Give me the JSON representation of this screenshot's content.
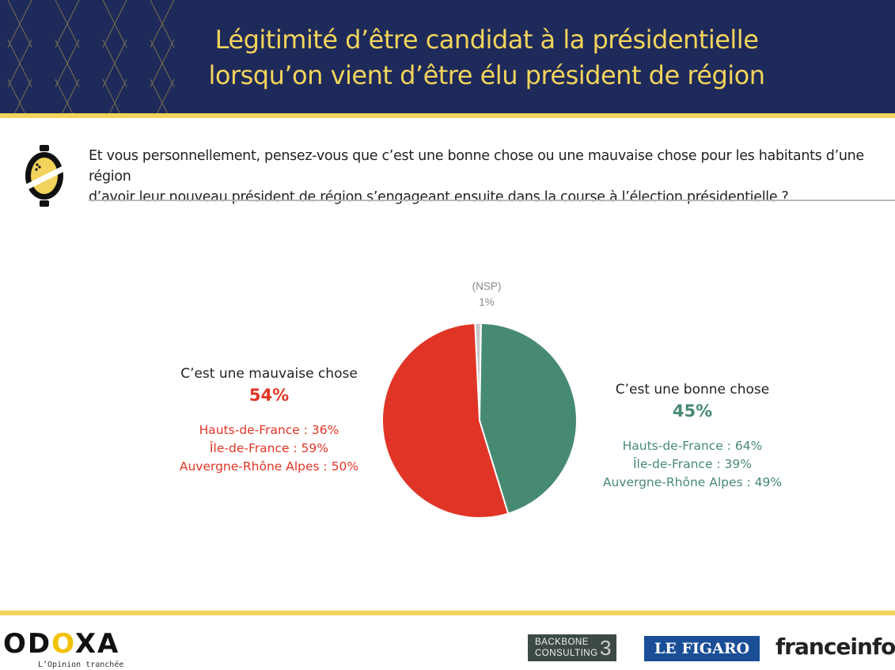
{
  "header": {
    "title_line1": "Légitimité d’être candidat à la présidentielle",
    "title_line2": "lorsqu’on vient d’être élu président de région"
  },
  "question": {
    "line1": "Et vous personnellement, pensez-vous que c’est une bonne chose ou une mauvaise chose pour les habitants d’une région",
    "line2": "d’avoir leur nouveau président de région s’engageant ensuite dans la course à l’élection présidentielle ?"
  },
  "chart_data": {
    "type": "pie",
    "slices": [
      {
        "key": "nsp",
        "label": "(NSP)",
        "value": 1,
        "value_label": "1%",
        "color": "#c8c8c8"
      },
      {
        "key": "bonne",
        "label": "C’est une bonne chose",
        "value": 45,
        "value_label": "45%",
        "color": "#478a72",
        "regions": [
          "Hauts-de-France : 64%",
          "Île-de-France : 39%",
          "Auvergne-Rhône Alpes : 49%"
        ]
      },
      {
        "key": "mauvaise",
        "label": "C’est une mauvaise chose",
        "value": 54,
        "value_label": "54%",
        "color": "#e03526",
        "regions": [
          "Hauts-de-France : 36%",
          "Île-de-France : 59%",
          "Auvergne-Rhône Alpes : 50%"
        ]
      }
    ]
  },
  "footer": {
    "odoxa_letters": [
      "OD",
      "O",
      "XA"
    ],
    "odoxa_tagline": "L’Opinion tranchée",
    "backbone_line1": "BACKBONE",
    "backbone_line2": "CONSULTING",
    "figaro": "LE FIGARO",
    "franceinfo": "franceinfo:"
  },
  "colors": {
    "navy": "#1e2a5a",
    "gold": "#f2d45c",
    "red": "#e03526",
    "green": "#478a72"
  }
}
